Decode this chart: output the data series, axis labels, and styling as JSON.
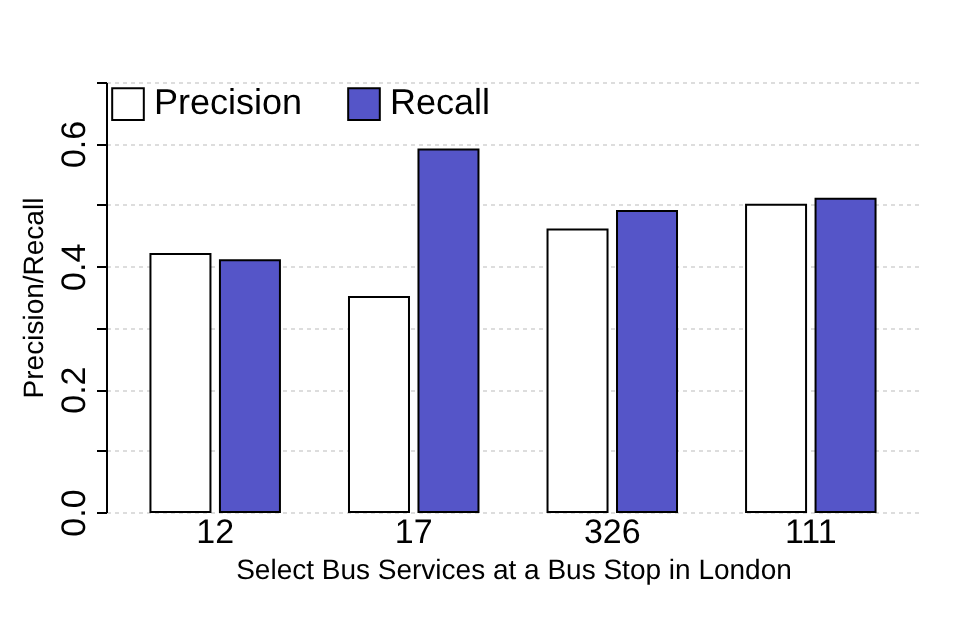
{
  "chart_data": {
    "type": "bar",
    "xlabel": "Select Bus Services at a Bus Stop in London",
    "ylabel": "Precision/Recall",
    "categories": [
      "12",
      "17",
      "326",
      "111"
    ],
    "series": [
      {
        "name": "Precision",
        "color": "#ffffff",
        "values": [
          0.42,
          0.35,
          0.46,
          0.5
        ]
      },
      {
        "name": "Recall",
        "color": "#5555c8",
        "values": [
          0.41,
          0.59,
          0.49,
          0.51
        ]
      }
    ],
    "ylim": [
      0,
      0.7
    ],
    "yticks": [
      {
        "value": 0,
        "label": "0.0"
      },
      {
        "value": 0.1,
        "label": null
      },
      0.2,
      {
        "value": 0.3,
        "label": null
      },
      0.4,
      {
        "value": 0.5,
        "label": null
      },
      0.6,
      {
        "value": 0.7,
        "label": null
      }
    ],
    "grid": true,
    "legend": "top left"
  }
}
